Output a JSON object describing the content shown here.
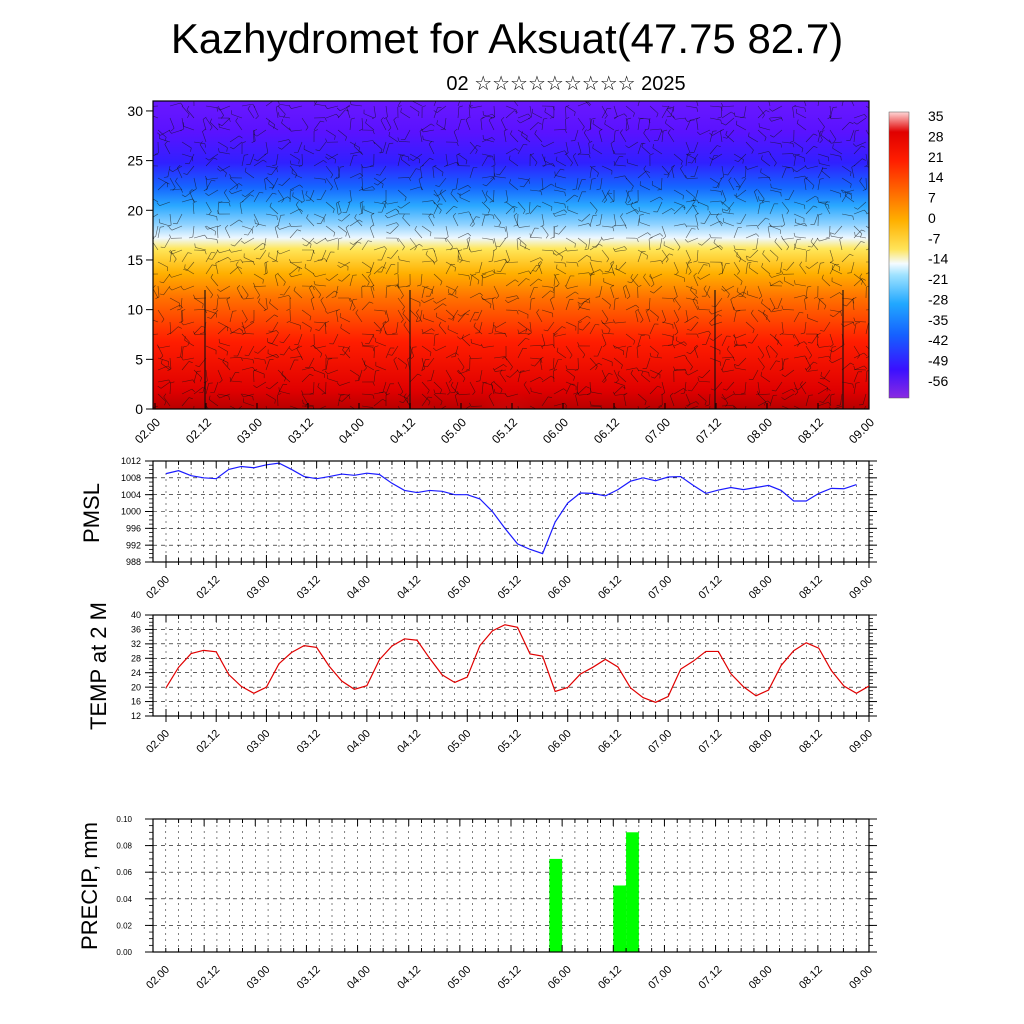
{
  "title": "Kazhydromet for Aksuat(47.75 82.7)",
  "subtitle": "02 ☆☆☆☆☆☆☆☆☆ 2025",
  "colors": {
    "pmsl_line": "#1a1aff",
    "temp_line": "#e00000",
    "precip_bar": "#00ff00",
    "grid": "#000000"
  },
  "chart_data": [
    {
      "type": "heatmap",
      "id": "cross-section",
      "title": "",
      "xlabel": "",
      "ylabel": "",
      "ylim": [
        0,
        31
      ],
      "yticks": [
        0,
        5,
        10,
        15,
        20,
        25,
        30
      ],
      "x_tick_labels": [
        "02.00",
        "02.12",
        "03.00",
        "03.12",
        "04.00",
        "04.12",
        "05.00",
        "05.12",
        "06.00",
        "06.12",
        "07.00",
        "07.12",
        "08.00",
        "08.12",
        "09.00"
      ],
      "colorbar": {
        "labels": [
          "35",
          "28",
          "21",
          "14",
          "7",
          "0",
          "-7",
          "-14",
          "-21",
          "-28",
          "-35",
          "-42",
          "-49",
          "-56"
        ],
        "range": [
          -60,
          38
        ]
      },
      "overlay": "wind barbs"
    },
    {
      "type": "line",
      "id": "pmsl",
      "ylabel": "PMSL",
      "ylim": [
        988,
        1012
      ],
      "yticks": [
        988,
        992,
        996,
        1000,
        1004,
        1008,
        1012
      ],
      "x_tick_labels": [
        "02.00",
        "02.12",
        "03.00",
        "03.12",
        "04.00",
        "04.12",
        "05.00",
        "05.12",
        "06.00",
        "06.12",
        "07.00",
        "07.12",
        "08.00",
        "08.12",
        "09.00"
      ],
      "x_hours": [
        0,
        3,
        6,
        9,
        12,
        15,
        18,
        21,
        24,
        27,
        30,
        33,
        36,
        39,
        42,
        45,
        48,
        51,
        54,
        57,
        60,
        63,
        66,
        69,
        72,
        75,
        78,
        81,
        84,
        87,
        90,
        93,
        96,
        99,
        102,
        105,
        108,
        111,
        114,
        117,
        120,
        123,
        126,
        129,
        132,
        135,
        138,
        141,
        144,
        147,
        150,
        153,
        156,
        159,
        162,
        165,
        168
      ],
      "series": [
        {
          "values": [
            1009,
            1009.7,
            1008.5,
            1008,
            1007.8,
            1010,
            1010.7,
            1010.4,
            1011.1,
            1011.5,
            1010,
            1008.3,
            1007.8,
            1008.3,
            1008.9,
            1008.6,
            1009.1,
            1008.8,
            1006.7,
            1005,
            1004.5,
            1005,
            1004.8,
            1004,
            1004,
            1003,
            1000,
            996,
            992.3,
            991,
            990,
            997.5,
            1002,
            1004.4,
            1004.3,
            1003.7,
            1005.2,
            1007.2,
            1008,
            1007.3,
            1008.2,
            1008.3,
            1006.2,
            1004.3,
            1005.1,
            1005.7,
            1005.2,
            1005.7,
            1006.2,
            1005,
            1002.5,
            1002.5,
            1004.3,
            1005.5,
            1005.4,
            1006.4,
            null
          ]
        }
      ]
    },
    {
      "type": "line",
      "id": "temp",
      "ylabel": "TEMP at 2 M",
      "ylim": [
        12,
        40
      ],
      "yticks": [
        12,
        16,
        20,
        24,
        28,
        32,
        36,
        40
      ],
      "x_tick_labels": [
        "02.00",
        "02.12",
        "03.00",
        "03.12",
        "04.00",
        "04.12",
        "05.00",
        "05.12",
        "06.00",
        "06.12",
        "07.00",
        "07.12",
        "08.00",
        "08.12",
        "09.00"
      ],
      "x_hours": [
        0,
        3,
        6,
        9,
        12,
        15,
        18,
        21,
        24,
        27,
        30,
        33,
        36,
        39,
        42,
        45,
        48,
        51,
        54,
        57,
        60,
        63,
        66,
        69,
        72,
        75,
        78,
        81,
        84,
        87,
        90,
        93,
        96,
        99,
        102,
        105,
        108,
        111,
        114,
        117,
        120,
        123,
        126,
        129,
        132,
        135,
        138,
        141,
        144,
        147,
        150,
        153,
        156,
        159,
        162,
        165,
        168
      ],
      "series": [
        {
          "values": [
            19.8,
            25.5,
            29.3,
            30.2,
            29.8,
            23.5,
            20.2,
            18.3,
            20,
            26.5,
            29.6,
            31.5,
            31,
            25.8,
            21.7,
            19.4,
            20.4,
            27.6,
            31.4,
            33.4,
            33,
            28,
            23.4,
            21.3,
            22.8,
            31.5,
            35.6,
            37.3,
            36.6,
            29.2,
            28.6,
            18.8,
            19.9,
            23.6,
            25.5,
            27.7,
            25.6,
            19.8,
            17.1,
            15.8,
            17.4,
            25,
            27.2,
            29.9,
            29.9,
            23.7,
            20.1,
            17.6,
            19.2,
            26,
            30.1,
            32.3,
            30.8,
            24.6,
            20.3,
            18.3,
            20.3
          ]
        }
      ]
    },
    {
      "type": "bar",
      "id": "precip",
      "ylabel": "PRECIP, mm",
      "ylim": [
        0,
        0.1
      ],
      "yticks": [
        "0.00",
        "0.02",
        "0.04",
        "0.06",
        "0.08",
        "0.10"
      ],
      "x_tick_labels": [
        "02.00",
        "02.12",
        "03.00",
        "03.12",
        "04.00",
        "04.12",
        "05.00",
        "05.12",
        "06.00",
        "06.12",
        "07.00",
        "07.12",
        "08.00",
        "08.12",
        "09.00"
      ],
      "bars": [
        {
          "start_hour": 93,
          "end_hour": 96,
          "value": 0.07
        },
        {
          "start_hour": 108,
          "end_hour": 111,
          "value": 0.05
        },
        {
          "start_hour": 111,
          "end_hour": 114,
          "value": 0.09
        }
      ]
    }
  ]
}
